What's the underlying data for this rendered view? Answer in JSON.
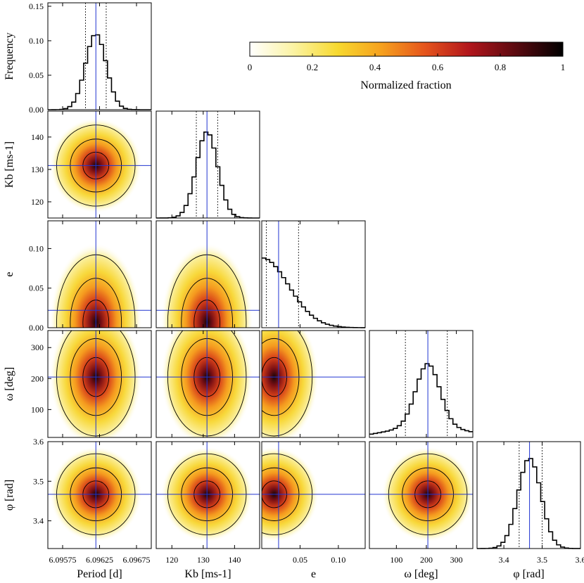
{
  "chart_data": {
    "type": "heatmap",
    "description_kind": "corner plot",
    "colorbar": {
      "label": "Normalized fraction",
      "ticks": [
        "0",
        "0.2",
        "0.4",
        "0.6",
        "0.8",
        "1"
      ],
      "range": [
        0,
        1
      ],
      "colors": [
        "#ffffff",
        "#fbf3a3",
        "#f7d92f",
        "#f6a11e",
        "#e5541c",
        "#b2161c",
        "#5a0a10",
        "#000000"
      ]
    },
    "params": [
      {
        "key": "period",
        "label": "Period [d]",
        "range": [
          6.09555,
          6.09695
        ],
        "ticks": [
          "6.09575",
          "6.09625",
          "6.09675"
        ],
        "tickvals": [
          6.09575,
          6.09625,
          6.09675
        ],
        "best": 6.0962,
        "ci": [
          6.09606,
          6.09634
        ]
      },
      {
        "key": "kb",
        "label": "Kb [ms-1]",
        "range": [
          115,
          148
        ],
        "ticks": [
          "120",
          "130",
          "140"
        ],
        "tickvals": [
          120,
          130,
          140
        ],
        "best": 131.2,
        "ci": [
          127.8,
          134.6
        ]
      },
      {
        "key": "e",
        "label": "e",
        "range": [
          0,
          0.135
        ],
        "ticks": [
          "0.05",
          "0.10"
        ],
        "tickvals": [
          0.05,
          0.1
        ],
        "best": 0.022,
        "ci": [
          0.006,
          0.048
        ]
      },
      {
        "key": "omega",
        "label": "ω [deg]",
        "range": [
          10,
          355
        ],
        "ticks": [
          "100",
          "200",
          "300"
        ],
        "tickvals": [
          100,
          200,
          300
        ],
        "best": 205,
        "ci": [
          130,
          270
        ]
      },
      {
        "key": "phi",
        "label": "φ [rad]",
        "range": [
          3.33,
          3.6
        ],
        "ticks": [
          "3.4",
          "3.5",
          "3.6"
        ],
        "tickvals": [
          3.4,
          3.5,
          3.6
        ],
        "best": 3.467,
        "ci": [
          3.44,
          3.5
        ]
      }
    ],
    "frequency_axis": {
      "label": "Frequency",
      "ticks": [
        "0.00",
        "0.05",
        "0.10",
        "0.15"
      ],
      "tickvals": [
        0,
        0.05,
        0.1,
        0.15
      ],
      "range": [
        0,
        0.155
      ]
    },
    "y_ticks": {
      "kb": [
        "120",
        "130",
        "140"
      ],
      "e": [
        "0.00",
        "0.05",
        "0.10"
      ],
      "omega": [
        "100",
        "200",
        "300"
      ],
      "phi": [
        "3.4",
        "3.5",
        "3.6"
      ]
    },
    "histograms": [
      {
        "param": "period",
        "shape": "gaussian",
        "peak": 0.11,
        "x": [
          6.0956,
          6.0957,
          6.0958,
          6.0959,
          6.096,
          6.0961,
          6.0962,
          6.0963,
          6.0964,
          6.0965,
          6.0966,
          6.0967,
          6.0968
        ],
        "freq": [
          0.002,
          0.004,
          0.01,
          0.028,
          0.06,
          0.095,
          0.11,
          0.1,
          0.07,
          0.035,
          0.013,
          0.004,
          0.001
        ]
      },
      {
        "param": "kb",
        "shape": "gaussian",
        "peak": 0.105
      },
      {
        "param": "e",
        "shape": "half-gaussian",
        "peak": 0.085
      },
      {
        "param": "omega",
        "shape": "gaussian-with-tail",
        "peak": 0.09
      },
      {
        "param": "phi",
        "shape": "gaussian",
        "peak": 0.11
      }
    ]
  }
}
